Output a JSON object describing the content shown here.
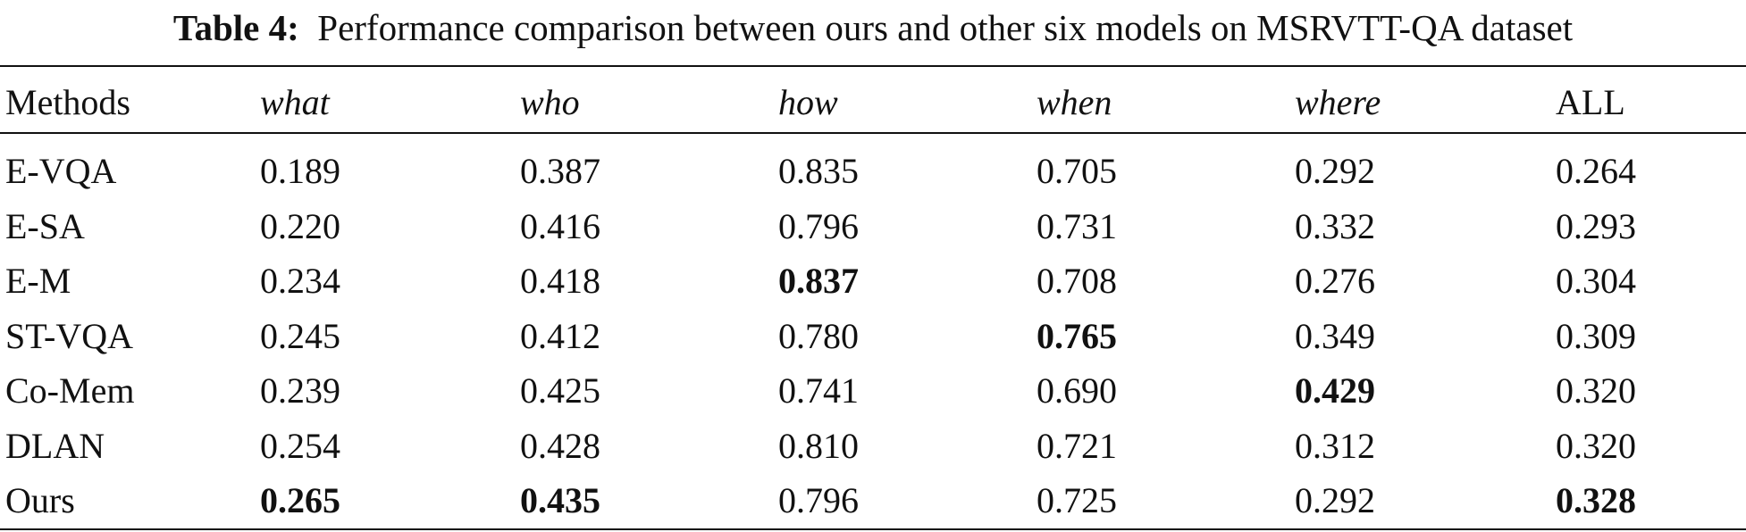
{
  "caption": {
    "label": "Table 4:",
    "text": "Performance comparison between ours and other six models on MSRVTT-QA dataset"
  },
  "table": {
    "columns": [
      "Methods",
      "what",
      "who",
      "how",
      "when",
      "where",
      "ALL"
    ],
    "rows": [
      {
        "method": "E-VQA",
        "values": [
          "0.189",
          "0.387",
          "0.835",
          "0.705",
          "0.292",
          "0.264"
        ],
        "bold": [
          false,
          false,
          false,
          false,
          false,
          false
        ]
      },
      {
        "method": "E-SA",
        "values": [
          "0.220",
          "0.416",
          "0.796",
          "0.731",
          "0.332",
          "0.293"
        ],
        "bold": [
          false,
          false,
          false,
          false,
          false,
          false
        ]
      },
      {
        "method": "E-M",
        "values": [
          "0.234",
          "0.418",
          "0.837",
          "0.708",
          "0.276",
          "0.304"
        ],
        "bold": [
          false,
          false,
          true,
          false,
          false,
          false
        ]
      },
      {
        "method": "ST-VQA",
        "values": [
          "0.245",
          "0.412",
          "0.780",
          "0.765",
          "0.349",
          "0.309"
        ],
        "bold": [
          false,
          false,
          false,
          true,
          false,
          false
        ]
      },
      {
        "method": "Co-Mem",
        "values": [
          "0.239",
          "0.425",
          "0.741",
          "0.690",
          "0.429",
          "0.320"
        ],
        "bold": [
          false,
          false,
          false,
          false,
          true,
          false
        ]
      },
      {
        "method": "DLAN",
        "values": [
          "0.254",
          "0.428",
          "0.810",
          "0.721",
          "0.312",
          "0.320"
        ],
        "bold": [
          false,
          false,
          false,
          false,
          false,
          false
        ]
      },
      {
        "method": "Ours",
        "values": [
          "0.265",
          "0.435",
          "0.796",
          "0.725",
          "0.292",
          "0.328"
        ],
        "bold": [
          true,
          true,
          false,
          false,
          false,
          true
        ]
      }
    ]
  }
}
